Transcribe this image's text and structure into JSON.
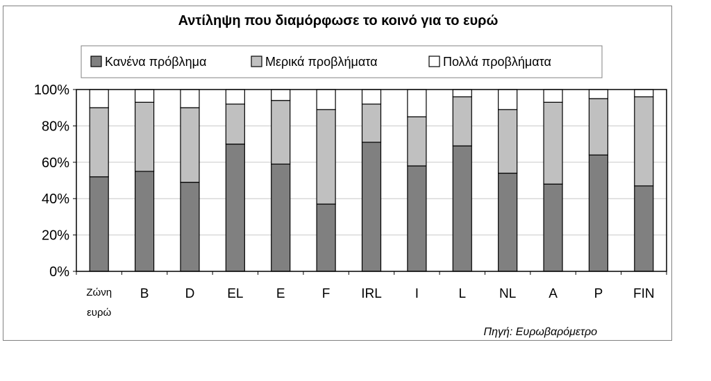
{
  "colors": {
    "series": [
      "#808080",
      "#c0c0c0",
      "#ffffff"
    ],
    "stroke": "#000000",
    "frame": "#808080"
  },
  "source": "Πηγή: Ευρωβαρόμετρο",
  "chart_data": {
    "type": "bar",
    "stacked": true,
    "percent_stacked": true,
    "title": "Αντίληψη που διαμόρφωσε το κοινό για το ευρώ",
    "categories": [
      [
        "Ζώνη",
        "ευρώ"
      ],
      "B",
      "D",
      "EL",
      "E",
      "F",
      "IRL",
      "I",
      "L",
      "NL",
      "A",
      "P",
      "FIN"
    ],
    "series": [
      {
        "name": "Κανένα πρόβλημα",
        "values": [
          52,
          55,
          49,
          70,
          59,
          37,
          71,
          58,
          69,
          54,
          48,
          64,
          47
        ]
      },
      {
        "name": "Μερικά προβλήματα",
        "values": [
          38,
          38,
          41,
          22,
          35,
          52,
          21,
          27,
          27,
          35,
          45,
          31,
          49
        ]
      },
      {
        "name": "Πολλά προβλήματα",
        "values": [
          10,
          7,
          10,
          8,
          6,
          11,
          8,
          15,
          4,
          11,
          7,
          5,
          4
        ]
      }
    ],
    "yticks": [
      "0%",
      "20%",
      "40%",
      "60%",
      "80%",
      "100%"
    ],
    "ylim": [
      0,
      100
    ],
    "grid": true,
    "legend_position": "top"
  }
}
